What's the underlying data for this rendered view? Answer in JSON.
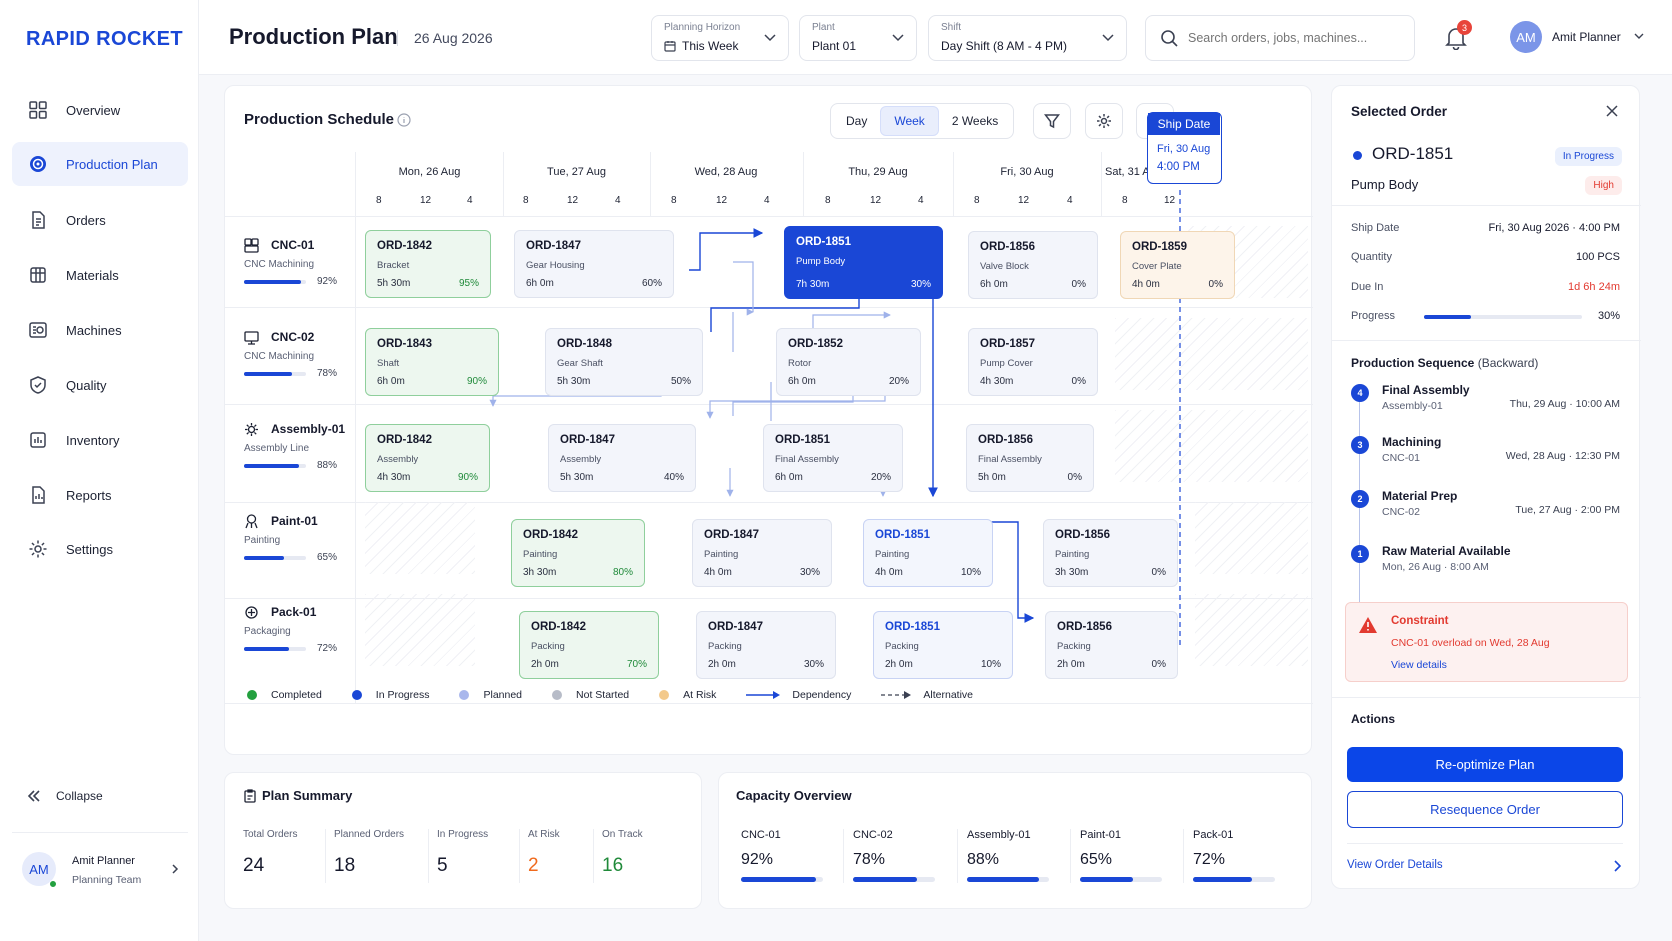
{
  "app": {
    "logo": "RAPID ROCKET"
  },
  "sidebar": {
    "items": [
      {
        "label": "Overview",
        "icon": "grid-icon"
      },
      {
        "label": "Production Plan",
        "icon": "target-icon"
      },
      {
        "label": "Orders",
        "icon": "document-icon"
      },
      {
        "label": "Materials",
        "icon": "box-icon"
      },
      {
        "label": "Machines",
        "icon": "machine-icon"
      },
      {
        "label": "Quality",
        "icon": "shield-check-icon"
      },
      {
        "label": "Inventory",
        "icon": "inventory-icon"
      },
      {
        "label": "Reports",
        "icon": "report-icon"
      },
      {
        "label": "Settings",
        "icon": "gear-icon"
      }
    ],
    "active_index": 1,
    "collapse_label": "Collapse",
    "user": {
      "initials": "AM",
      "name": "Amit Planner",
      "team": "Planning Team"
    }
  },
  "header": {
    "title": "Production Plan",
    "date": "26 Aug 2026",
    "horizon": {
      "label": "Planning Horizon",
      "value": "This Week"
    },
    "plant": {
      "label": "Plant",
      "value": "Plant 01"
    },
    "shift": {
      "label": "Shift",
      "value": "Day Shift (8 AM - 4 PM)"
    },
    "search_placeholder": "Search orders, jobs, machines...",
    "notification_count": "3",
    "user": {
      "initials": "AM",
      "name": "Amit Planner"
    }
  },
  "schedule": {
    "title": "Production Schedule",
    "views": [
      "Day",
      "Week",
      "2 Weeks"
    ],
    "active_view": "Week",
    "ship_date": {
      "label": "Ship Date",
      "line1": "Fri, 30 Aug",
      "line2": "4:00 PM"
    },
    "days": [
      {
        "label": "Mon, 26 Aug",
        "ticks": [
          "8",
          "12",
          "4"
        ]
      },
      {
        "label": "Tue, 27 Aug",
        "ticks": [
          "8",
          "12",
          "4"
        ]
      },
      {
        "label": "Wed, 28 Aug",
        "ticks": [
          "8",
          "12",
          "4"
        ]
      },
      {
        "label": "Thu, 29 Aug",
        "ticks": [
          "8",
          "12",
          "4"
        ]
      },
      {
        "label": "Fri, 30 Aug",
        "ticks": [
          "8",
          "12",
          "4"
        ]
      },
      {
        "label": "Sat, 31 Aug",
        "ticks": [
          "8",
          "12"
        ]
      }
    ],
    "resources": [
      {
        "name": "CNC-01",
        "type": "CNC Machining",
        "util": 92,
        "util_label": "92%",
        "icon": "cnc-icon"
      },
      {
        "name": "CNC-02",
        "type": "CNC Machining",
        "util": 78,
        "util_label": "78%",
        "icon": "monitor-icon"
      },
      {
        "name": "Assembly-01",
        "type": "Assembly Line",
        "util": 88,
        "util_label": "88%",
        "icon": "assembly-icon"
      },
      {
        "name": "Paint-01",
        "type": "Painting",
        "util": 65,
        "util_label": "65%",
        "icon": "paint-icon"
      },
      {
        "name": "Pack-01",
        "type": "Packaging",
        "util": 72,
        "util_label": "72%",
        "icon": "pack-icon"
      }
    ],
    "tasks": [
      {
        "id": "ORD-1842",
        "desc": "Bracket",
        "dur": "5h 30m",
        "pct": "95%",
        "status": "comp"
      },
      {
        "id": "ORD-1847",
        "desc": "Gear Housing",
        "dur": "6h 0m",
        "pct": "60%",
        "status": "plan"
      },
      {
        "id": "ORD-1851",
        "desc": "Pump Body",
        "dur": "7h 30m",
        "pct": "30%",
        "status": "sel"
      },
      {
        "id": "ORD-1856",
        "desc": "Valve Block",
        "dur": "6h 0m",
        "pct": "0%",
        "status": "plan"
      },
      {
        "id": "ORD-1859",
        "desc": "Cover Plate",
        "dur": "4h 0m",
        "pct": "0%",
        "status": "risk"
      },
      {
        "id": "ORD-1843",
        "desc": "Shaft",
        "dur": "6h 0m",
        "pct": "90%",
        "status": "comp"
      },
      {
        "id": "ORD-1848",
        "desc": "Gear Shaft",
        "dur": "5h 30m",
        "pct": "50%",
        "status": "plan"
      },
      {
        "id": "ORD-1852",
        "desc": "Rotor",
        "dur": "6h 0m",
        "pct": "20%",
        "status": "plan"
      },
      {
        "id": "ORD-1857",
        "desc": "Pump Cover",
        "dur": "4h 30m",
        "pct": "0%",
        "status": "plan"
      },
      {
        "id": "ORD-1842",
        "desc": "Assembly",
        "dur": "4h 30m",
        "pct": "90%",
        "status": "comp"
      },
      {
        "id": "ORD-1847",
        "desc": "Assembly",
        "dur": "5h 30m",
        "pct": "40%",
        "status": "plan"
      },
      {
        "id": "ORD-1851",
        "desc": "Final Assembly",
        "dur": "6h 0m",
        "pct": "20%",
        "status": "plan"
      },
      {
        "id": "ORD-1856",
        "desc": "Final Assembly",
        "dur": "5h 0m",
        "pct": "0%",
        "status": "plan"
      },
      {
        "id": "ORD-1842",
        "desc": "Painting",
        "dur": "3h 30m",
        "pct": "80%",
        "status": "comp"
      },
      {
        "id": "ORD-1847",
        "desc": "Painting",
        "dur": "4h 0m",
        "pct": "30%",
        "status": "plan"
      },
      {
        "id": "ORD-1851",
        "desc": "Painting",
        "dur": "4h 0m",
        "pct": "10%",
        "status": "prog"
      },
      {
        "id": "ORD-1856",
        "desc": "Painting",
        "dur": "3h 30m",
        "pct": "0%",
        "status": "plan"
      },
      {
        "id": "ORD-1842",
        "desc": "Packing",
        "dur": "2h 0m",
        "pct": "70%",
        "status": "comp"
      },
      {
        "id": "ORD-1847",
        "desc": "Packing",
        "dur": "2h 0m",
        "pct": "30%",
        "status": "plan"
      },
      {
        "id": "ORD-1851",
        "desc": "Packing",
        "dur": "2h 0m",
        "pct": "10%",
        "status": "prog"
      },
      {
        "id": "ORD-1856",
        "desc": "Packing",
        "dur": "2h 0m",
        "pct": "0%",
        "status": "plan"
      }
    ],
    "legend": [
      "Completed",
      "In Progress",
      "Planned",
      "Not Started",
      "At Risk",
      "Dependency",
      "Alternative"
    ],
    "colors": {
      "completed": "#23a03f",
      "in_progress": "#1a47d6",
      "planned": "#a9b7ec",
      "not_started": "#b7bcc8",
      "at_risk": "#f3c98b"
    }
  },
  "plan_summary": {
    "title": "Plan Summary",
    "items": [
      {
        "label": "Total Orders",
        "value": "24",
        "color": "#16192c"
      },
      {
        "label": "Planned Orders",
        "value": "18",
        "color": "#16192c"
      },
      {
        "label": "In Progress",
        "value": "5",
        "color": "#16192c"
      },
      {
        "label": "At Risk",
        "value": "2",
        "color": "#f06a1d"
      },
      {
        "label": "On Track",
        "value": "16",
        "color": "#208a3a"
      }
    ]
  },
  "capacity": {
    "title": "Capacity Overview",
    "items": [
      {
        "label": "CNC-01",
        "value": "92%",
        "fill": 0.92
      },
      {
        "label": "CNC-02",
        "value": "78%",
        "fill": 0.78
      },
      {
        "label": "Assembly-01",
        "value": "88%",
        "fill": 0.88
      },
      {
        "label": "Paint-01",
        "value": "65%",
        "fill": 0.65
      },
      {
        "label": "Pack-01",
        "value": "72%",
        "fill": 0.72
      }
    ]
  },
  "selected_order": {
    "panel_title": "Selected Order",
    "id": "ORD-1851",
    "status": "In Progress",
    "name": "Pump Body",
    "priority": "High",
    "fields": [
      {
        "label": "Ship Date",
        "value": "Fri, 30 Aug 2026  ·  4:00 PM"
      },
      {
        "label": "Quantity",
        "value": "100 PCS"
      },
      {
        "label": "Due In",
        "value": "1d 6h 24m"
      }
    ],
    "progress_label": "Progress",
    "progress": 0.3,
    "progress_text": "30%",
    "sequence_title": "Production Sequence",
    "sequence_sub": "(Backward)",
    "steps": [
      {
        "num": "4",
        "name": "Final Assembly",
        "sub": "Assembly-01",
        "time": "Thu, 29 Aug · 10:00 AM"
      },
      {
        "num": "3",
        "name": "Machining",
        "sub": "CNC-01",
        "time": "Wed, 28 Aug · 12:30 PM"
      },
      {
        "num": "2",
        "name": "Material Prep",
        "sub": "CNC-02",
        "time": "Tue, 27 Aug · 2:00 PM"
      },
      {
        "num": "1",
        "name": "Raw Material Available",
        "sub": "Mon, 26 Aug  ·  8:00 AM",
        "time": ""
      }
    ],
    "constraint": {
      "title": "Constraint",
      "text": "CNC-01 overload on Wed, 28 Aug",
      "link": "View details"
    },
    "actions_title": "Actions",
    "reoptimize": "Re-optimize Plan",
    "resequence": "Resequence Order",
    "view_details": "View Order Details"
  }
}
